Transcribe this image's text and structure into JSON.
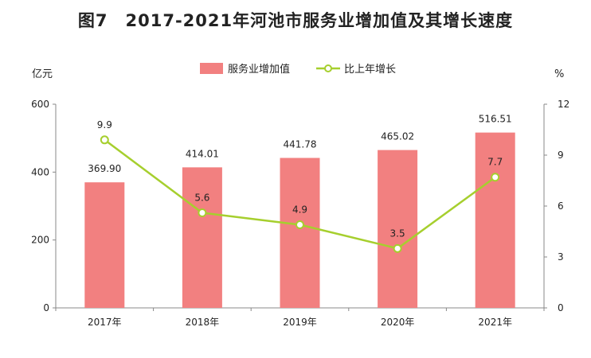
{
  "figure_label": "图7",
  "title": "2017-2021年河池市服务业增加值及其增长速度",
  "chart_data": {
    "type": "bar+line",
    "categories": [
      "2017年",
      "2018年",
      "2019年",
      "2020年",
      "2021年"
    ],
    "series": [
      {
        "name": "服务业增加值",
        "type": "bar",
        "axis": "left",
        "values": [
          369.9,
          414.01,
          441.78,
          465.02,
          516.51
        ],
        "labels": [
          "369.90",
          "414.01",
          "441.78",
          "465.02",
          "516.51"
        ],
        "color": "#f28080"
      },
      {
        "name": "比上年增长",
        "type": "line",
        "axis": "right",
        "values": [
          9.9,
          5.6,
          4.9,
          3.5,
          7.7
        ],
        "labels": [
          "9.9",
          "5.6",
          "4.9",
          "3.5",
          "7.7"
        ],
        "color": "#a6cf2e"
      }
    ],
    "y_left": {
      "unit": "亿元",
      "range": [
        0,
        600
      ],
      "ticks": [
        "0",
        "200",
        "400",
        "600"
      ]
    },
    "y_right": {
      "unit": "%",
      "range": [
        0,
        12
      ],
      "ticks": [
        "0",
        "3",
        "6",
        "9",
        "12"
      ]
    },
    "legend_position": "top-center",
    "grid": false
  }
}
